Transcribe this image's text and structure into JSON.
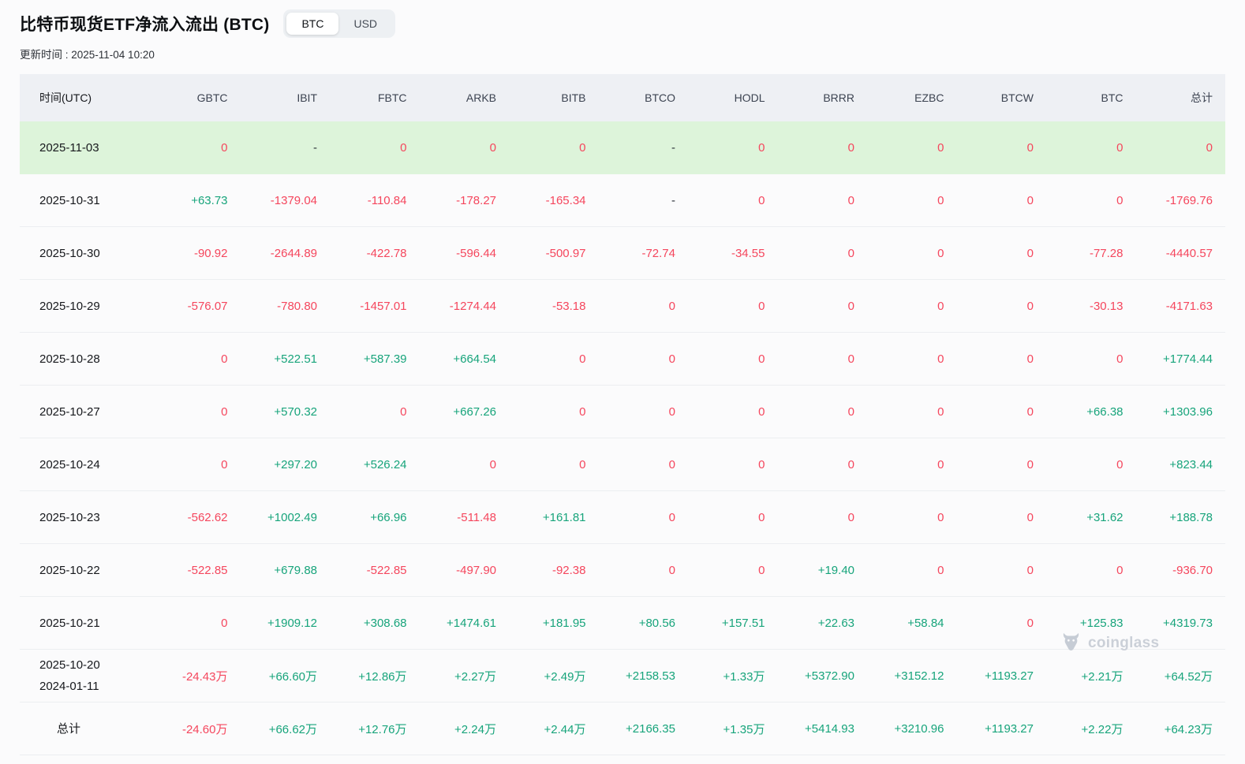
{
  "page": {
    "title": "比特币现货ETF净流入流出 (BTC)",
    "updated": "更新时间 : 2025-11-04 10:20"
  },
  "toggle": {
    "options": [
      "BTC",
      "USD"
    ],
    "active": "BTC"
  },
  "watermark": {
    "brand": "coinglass",
    "icon": "coinglass-bull-icon"
  },
  "colors": {
    "positive": "#17a47b",
    "negative": "#f5465d",
    "highlight_row_bg": "#ddf4da",
    "header_bg": "#eef0f4"
  },
  "table": {
    "columns": [
      "时间(UTC)",
      "GBTC",
      "IBIT",
      "FBTC",
      "ARKB",
      "BITB",
      "BTCO",
      "HODL",
      "BRRR",
      "EZBC",
      "BTCW",
      "BTC",
      "总计"
    ],
    "rows": [
      {
        "dates": [
          "2025-11-03"
        ],
        "highlight": true,
        "total_row": false,
        "values": [
          "0",
          "-",
          "0",
          "0",
          "0",
          "-",
          "0",
          "0",
          "0",
          "0",
          "0",
          "0"
        ]
      },
      {
        "dates": [
          "2025-10-31"
        ],
        "highlight": false,
        "total_row": false,
        "values": [
          "+63.73",
          "-1379.04",
          "-110.84",
          "-178.27",
          "-165.34",
          "-",
          "0",
          "0",
          "0",
          "0",
          "0",
          "-1769.76"
        ]
      },
      {
        "dates": [
          "2025-10-30"
        ],
        "highlight": false,
        "total_row": false,
        "values": [
          "-90.92",
          "-2644.89",
          "-422.78",
          "-596.44",
          "-500.97",
          "-72.74",
          "-34.55",
          "0",
          "0",
          "0",
          "-77.28",
          "-4440.57"
        ]
      },
      {
        "dates": [
          "2025-10-29"
        ],
        "highlight": false,
        "total_row": false,
        "values": [
          "-576.07",
          "-780.80",
          "-1457.01",
          "-1274.44",
          "-53.18",
          "0",
          "0",
          "0",
          "0",
          "0",
          "-30.13",
          "-4171.63"
        ]
      },
      {
        "dates": [
          "2025-10-28"
        ],
        "highlight": false,
        "total_row": false,
        "values": [
          "0",
          "+522.51",
          "+587.39",
          "+664.54",
          "0",
          "0",
          "0",
          "0",
          "0",
          "0",
          "0",
          "+1774.44"
        ]
      },
      {
        "dates": [
          "2025-10-27"
        ],
        "highlight": false,
        "total_row": false,
        "values": [
          "0",
          "+570.32",
          "0",
          "+667.26",
          "0",
          "0",
          "0",
          "0",
          "0",
          "0",
          "+66.38",
          "+1303.96"
        ]
      },
      {
        "dates": [
          "2025-10-24"
        ],
        "highlight": false,
        "total_row": false,
        "values": [
          "0",
          "+297.20",
          "+526.24",
          "0",
          "0",
          "0",
          "0",
          "0",
          "0",
          "0",
          "0",
          "+823.44"
        ]
      },
      {
        "dates": [
          "2025-10-23"
        ],
        "highlight": false,
        "total_row": false,
        "values": [
          "-562.62",
          "+1002.49",
          "+66.96",
          "-511.48",
          "+161.81",
          "0",
          "0",
          "0",
          "0",
          "0",
          "+31.62",
          "+188.78"
        ]
      },
      {
        "dates": [
          "2025-10-22"
        ],
        "highlight": false,
        "total_row": false,
        "values": [
          "-522.85",
          "+679.88",
          "-522.85",
          "-497.90",
          "-92.38",
          "0",
          "0",
          "+19.40",
          "0",
          "0",
          "0",
          "-936.70"
        ]
      },
      {
        "dates": [
          "2025-10-21"
        ],
        "highlight": false,
        "total_row": false,
        "values": [
          "0",
          "+1909.12",
          "+308.68",
          "+1474.61",
          "+181.95",
          "+80.56",
          "+157.51",
          "+22.63",
          "+58.84",
          "0",
          "+125.83",
          "+4319.73"
        ]
      },
      {
        "dates": [
          "2025-10-20",
          "2024-01-11"
        ],
        "highlight": false,
        "total_row": false,
        "values": [
          "-24.43万",
          "+66.60万",
          "+12.86万",
          "+2.27万",
          "+2.49万",
          "+2158.53",
          "+1.33万",
          "+5372.90",
          "+3152.12",
          "+1193.27",
          "+2.21万",
          "+64.52万"
        ]
      },
      {
        "dates": [
          "总计"
        ],
        "highlight": false,
        "total_row": true,
        "values": [
          "-24.60万",
          "+66.62万",
          "+12.76万",
          "+2.24万",
          "+2.44万",
          "+2166.35",
          "+1.35万",
          "+5414.93",
          "+3210.96",
          "+1193.27",
          "+2.22万",
          "+64.23万"
        ]
      }
    ]
  }
}
